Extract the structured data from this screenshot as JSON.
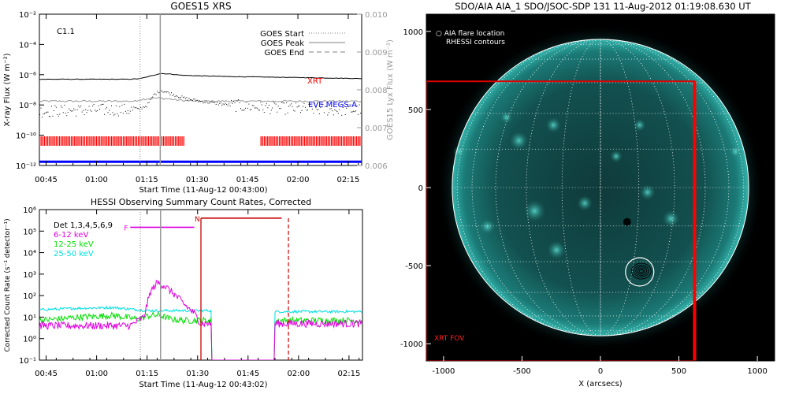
{
  "chart_data": [
    {
      "type": "line",
      "title": "GOES15 XRS",
      "xlabel": "Start Time (11-Aug-12 00:43:00)",
      "ylabel": "X-ray Flux (W m⁻²)",
      "y2label": "GOES15 Lyx Flux (W m⁻²)",
      "x_ticks": [
        "00:45",
        "01:00",
        "01:15",
        "01:30",
        "01:45",
        "02:00",
        "02:15"
      ],
      "xlim": [
        "00:43",
        "02:19"
      ],
      "y_scale": "log",
      "y_ticks": [
        "10⁻²",
        "10⁻⁴",
        "10⁻⁶",
        "10⁻⁸",
        "10⁻¹⁰",
        "10⁻¹²"
      ],
      "ylim": [
        1e-12,
        0.01
      ],
      "y2_ticks": [
        "0.010",
        "0.009",
        "0.008",
        "0.007",
        "0.006"
      ],
      "y2lim": [
        0.006,
        0.01
      ],
      "flare_class": "C1.1",
      "legend": [
        {
          "label": "GOES Start",
          "style": "dotted"
        },
        {
          "label": "GOES Peak",
          "style": "solid"
        },
        {
          "label": "GOES End",
          "style": "dashed"
        }
      ],
      "event_lines": {
        "start": "01:13",
        "peak": "01:19"
      },
      "series": [
        {
          "name": "XRT",
          "color": "#ff0000"
        },
        {
          "name": "EVE MEGS-A",
          "color": "#0000ff"
        }
      ],
      "long_channel": {
        "x": [
          "00:43",
          "01:10",
          "01:13",
          "01:16",
          "01:19",
          "01:22",
          "01:26",
          "01:30",
          "01:40",
          "01:50",
          "02:00",
          "02:10",
          "02:19"
        ],
        "y": [
          5e-07,
          5e-07,
          5.5e-07,
          8e-07,
          1.2e-06,
          1.1e-06,
          9e-07,
          8.5e-07,
          7.5e-07,
          7e-07,
          6.5e-07,
          6e-07,
          5.5e-07
        ]
      },
      "short_channel": {
        "x": [
          "00:43",
          "01:00",
          "01:12",
          "01:15",
          "01:17",
          "01:19",
          "01:22",
          "01:26",
          "01:30",
          "01:40",
          "01:50",
          "02:00",
          "02:10",
          "02:19"
        ],
        "y": [
          4e-09,
          5e-09,
          5e-09,
          1e-08,
          5e-08,
          1e-07,
          6e-08,
          3e-08,
          2e-08,
          1e-08,
          7e-09,
          6e-09,
          5e-09,
          5e-09
        ]
      },
      "lya_level": 0.0077,
      "xrt_coverage": [
        [
          "00:43",
          "01:26"
        ],
        [
          "01:49",
          "02:19"
        ]
      ],
      "eve_level": 0.0061
    },
    {
      "type": "line",
      "title": "HESSI Observing Summary Count Rates, Corrected",
      "xlabel": "Start Time (11-Aug-12 00:43:02)",
      "ylabel": "Corrected Count Rate (s⁻¹ detector⁻¹)",
      "x_ticks": [
        "00:45",
        "01:00",
        "01:15",
        "01:30",
        "01:45",
        "02:00",
        "02:15"
      ],
      "xlim": [
        "00:43",
        "02:19"
      ],
      "y_scale": "log",
      "y_ticks": [
        "10⁶",
        "10⁵",
        "10⁴",
        "10³",
        "10²",
        "10¹",
        "10⁰",
        "10⁻¹"
      ],
      "ylim": [
        0.1,
        1000000.0
      ],
      "legend_header": "Det 1,3,4,5,6,9",
      "flags": [
        {
          "label": "F",
          "start": "01:10",
          "end": "01:29",
          "color": "#e000e0"
        },
        {
          "label": "N",
          "start": "01:31",
          "end": "01:55",
          "color": "#cc0000"
        }
      ],
      "event_lines": {
        "start": "01:13",
        "peak": "01:19",
        "red_solid": "01:31",
        "red_dashed": "01:57"
      },
      "series": [
        {
          "name": "6-12 keV",
          "color": "#e000e0",
          "x": [
            "00:43",
            "01:00",
            "01:10",
            "01:14",
            "01:16",
            "01:18",
            "01:20",
            "01:23",
            "01:26",
            "01:29",
            "01:31"
          ],
          "y": [
            4,
            4,
            4,
            10,
            150,
            400,
            300,
            120,
            40,
            15,
            5
          ]
        },
        {
          "name": "12-25 keV",
          "color": "#00e000",
          "x": [
            "00:43",
            "00:55",
            "01:05",
            "01:12",
            "01:16",
            "01:19",
            "01:22",
            "01:26",
            "01:31"
          ],
          "y": [
            7,
            10,
            12,
            8,
            12,
            12,
            8,
            7,
            7
          ]
        },
        {
          "name": "25-50 keV",
          "color": "#00e0e0",
          "x": [
            "00:43",
            "00:55",
            "01:05",
            "01:12",
            "01:16",
            "01:19",
            "01:22",
            "01:26",
            "01:31"
          ],
          "y": [
            22,
            26,
            28,
            22,
            20,
            20,
            20,
            20,
            20
          ]
        }
      ],
      "gap": [
        "01:37",
        "01:53"
      ],
      "after_gap": {
        "x": [
          "01:53",
          "02:05",
          "02:19"
        ],
        "magenta": [
          5,
          5,
          5
        ],
        "green": [
          7,
          7,
          7
        ],
        "cyan": [
          18,
          18,
          18
        ]
      }
    },
    {
      "type": "heatmap",
      "title": "SDO/AIA AIA_1 SDO/JSOC-SDP 131 11-Aug-2012 01:19:08.630 UT",
      "xlabel": "X (arcsecs)",
      "ylabel": "",
      "x_ticks": [
        "-1000",
        "-500",
        "0",
        "500",
        "1000"
      ],
      "y_ticks": [
        "1000",
        "500",
        "0",
        "-500",
        "-1000"
      ],
      "xlim": [
        -1110,
        1110
      ],
      "ylim": [
        -1110,
        1110
      ],
      "solar_radius": 945,
      "legend": [
        "○ AIA flare location",
        "RHESSI contours"
      ],
      "xrt_fov_label": "XRT FOV",
      "xrt_fov": {
        "x": [
          -1110,
          600
        ],
        "y": [
          -1110,
          680
        ]
      },
      "flare_location": {
        "x": 250,
        "y": -540
      },
      "dark_spot": {
        "x": 170,
        "y": -220
      }
    }
  ]
}
